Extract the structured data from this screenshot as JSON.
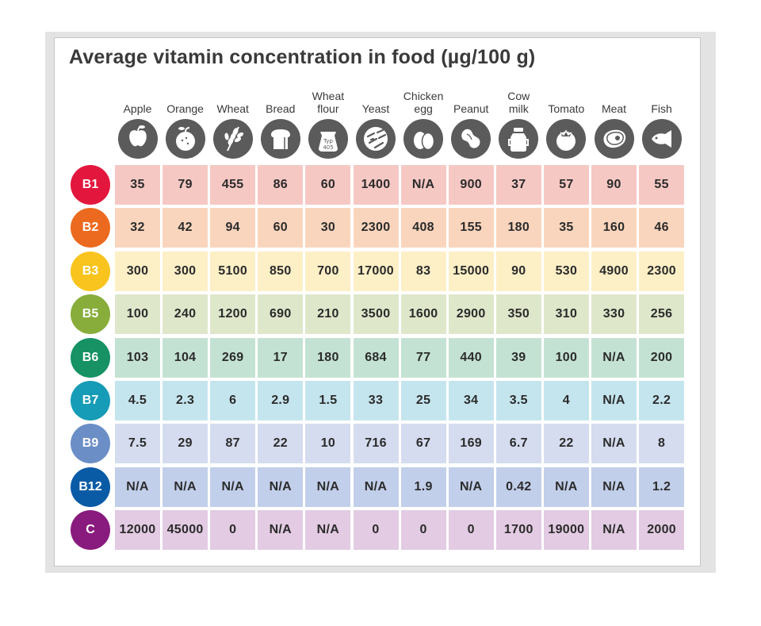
{
  "title": "Average vitamin concentration in food (µg/100 g)",
  "columns": [
    {
      "label": "Apple",
      "icon": "apple-icon"
    },
    {
      "label": "Orange",
      "icon": "orange-icon"
    },
    {
      "label": "Wheat",
      "icon": "wheat-icon"
    },
    {
      "label": "Bread",
      "icon": "bread-icon"
    },
    {
      "label": "Wheat\nflour",
      "icon": "flour-bag-icon",
      "icon_text": "Typ\n405"
    },
    {
      "label": "Yeast",
      "icon": "yeast-icon"
    },
    {
      "label": "Chicken\negg",
      "icon": "egg-icon"
    },
    {
      "label": "Peanut",
      "icon": "peanut-icon"
    },
    {
      "label": "Cow\nmilk",
      "icon": "milk-can-icon"
    },
    {
      "label": "Tomato",
      "icon": "tomato-icon"
    },
    {
      "label": "Meat",
      "icon": "meat-icon"
    },
    {
      "label": "Fish",
      "icon": "fish-icon"
    }
  ],
  "rows": [
    {
      "vitamin": "B1",
      "badge_color": "#e3173d",
      "cell_color": "#f6c8c4",
      "values": [
        "35",
        "79",
        "455",
        "86",
        "60",
        "1400",
        "N/A",
        "900",
        "37",
        "57",
        "90",
        "55"
      ]
    },
    {
      "vitamin": "B2",
      "badge_color": "#ec6a1f",
      "cell_color": "#fad5bd",
      "values": [
        "32",
        "42",
        "94",
        "60",
        "30",
        "2300",
        "408",
        "155",
        "180",
        "35",
        "160",
        "46"
      ]
    },
    {
      "vitamin": "B3",
      "badge_color": "#f9c41e",
      "cell_color": "#fdefc6",
      "values": [
        "300",
        "300",
        "5100",
        "850",
        "700",
        "17000",
        "83",
        "15000",
        "90",
        "530",
        "4900",
        "2300"
      ]
    },
    {
      "vitamin": "B5",
      "badge_color": "#88ad3b",
      "cell_color": "#dfe7cb",
      "values": [
        "100",
        "240",
        "1200",
        "690",
        "210",
        "3500",
        "1600",
        "2900",
        "350",
        "310",
        "330",
        "256"
      ]
    },
    {
      "vitamin": "B6",
      "badge_color": "#169264",
      "cell_color": "#c4e2d3",
      "values": [
        "103",
        "104",
        "269",
        "17",
        "180",
        "684",
        "77",
        "440",
        "39",
        "100",
        "N/A",
        "200"
      ]
    },
    {
      "vitamin": "B7",
      "badge_color": "#169cb6",
      "cell_color": "#c5e5ee",
      "values": [
        "4.5",
        "2.3",
        "6",
        "2.9",
        "1.5",
        "33",
        "25",
        "34",
        "3.5",
        "4",
        "N/A",
        "2.2"
      ]
    },
    {
      "vitamin": "B9",
      "badge_color": "#6b8ec6",
      "cell_color": "#d5dcef",
      "values": [
        "7.5",
        "29",
        "87",
        "22",
        "10",
        "716",
        "67",
        "169",
        "6.7",
        "22",
        "N/A",
        "8"
      ]
    },
    {
      "vitamin": "B12",
      "badge_color": "#0a5ba6",
      "cell_color": "#c2cfea",
      "values": [
        "N/A",
        "N/A",
        "N/A",
        "N/A",
        "N/A",
        "N/A",
        "1.9",
        "N/A",
        "0.42",
        "N/A",
        "N/A",
        "1.2"
      ]
    },
    {
      "vitamin": "C",
      "badge_color": "#8a1b7e",
      "cell_color": "#e3cbe3",
      "values": [
        "12000",
        "45000",
        "0",
        "N/A",
        "N/A",
        "0",
        "0",
        "0",
        "1700",
        "19000",
        "N/A",
        "2000"
      ]
    }
  ],
  "chart_data": {
    "type": "table",
    "title": "Average vitamin concentration in food (µg/100 g)",
    "columns": [
      "Apple",
      "Orange",
      "Wheat",
      "Bread",
      "Wheat flour",
      "Yeast",
      "Chicken egg",
      "Peanut",
      "Cow milk",
      "Tomato",
      "Meat",
      "Fish"
    ],
    "row_labels": [
      "B1",
      "B2",
      "B3",
      "B5",
      "B6",
      "B7",
      "B9",
      "B12",
      "C"
    ],
    "values": [
      [
        "35",
        "79",
        "455",
        "86",
        "60",
        "1400",
        "N/A",
        "900",
        "37",
        "57",
        "90",
        "55"
      ],
      [
        "32",
        "42",
        "94",
        "60",
        "30",
        "2300",
        "408",
        "155",
        "180",
        "35",
        "160",
        "46"
      ],
      [
        "300",
        "300",
        "5100",
        "850",
        "700",
        "17000",
        "83",
        "15000",
        "90",
        "530",
        "4900",
        "2300"
      ],
      [
        "100",
        "240",
        "1200",
        "690",
        "210",
        "3500",
        "1600",
        "2900",
        "350",
        "310",
        "330",
        "256"
      ],
      [
        "103",
        "104",
        "269",
        "17",
        "180",
        "684",
        "77",
        "440",
        "39",
        "100",
        "N/A",
        "200"
      ],
      [
        "4.5",
        "2.3",
        "6",
        "2.9",
        "1.5",
        "33",
        "25",
        "34",
        "3.5",
        "4",
        "N/A",
        "2.2"
      ],
      [
        "7.5",
        "29",
        "87",
        "22",
        "10",
        "716",
        "67",
        "169",
        "6.7",
        "22",
        "N/A",
        "8"
      ],
      [
        "N/A",
        "N/A",
        "N/A",
        "N/A",
        "N/A",
        "N/A",
        "1.9",
        "N/A",
        "0.42",
        "N/A",
        "N/A",
        "1.2"
      ],
      [
        "12000",
        "45000",
        "0",
        "N/A",
        "N/A",
        "0",
        "0",
        "0",
        "1700",
        "19000",
        "N/A",
        "2000"
      ]
    ]
  }
}
